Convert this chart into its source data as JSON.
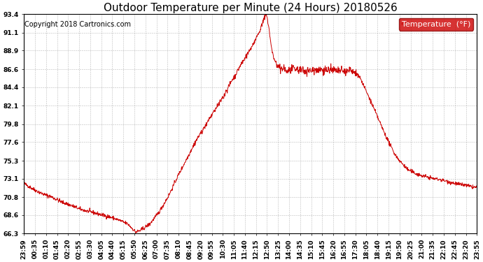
{
  "title": "Outdoor Temperature per Minute (24 Hours) 20180526",
  "copyright_text": "Copyright 2018 Cartronics.com",
  "legend_label": "Temperature  (°F)",
  "line_color": "#cc0000",
  "legend_bg": "#cc0000",
  "legend_text_color": "#ffffff",
  "background_color": "#ffffff",
  "grid_color": "#aaaaaa",
  "yticks": [
    66.3,
    68.6,
    70.8,
    73.1,
    75.3,
    77.6,
    79.8,
    82.1,
    84.4,
    86.6,
    88.9,
    91.1,
    93.4
  ],
  "ymin": 66.3,
  "ymax": 93.4,
  "xtick_labels": [
    "23:59",
    "00:35",
    "01:10",
    "01:45",
    "02:20",
    "02:55",
    "03:30",
    "04:05",
    "04:40",
    "05:15",
    "05:50",
    "06:25",
    "07:00",
    "07:35",
    "08:10",
    "08:45",
    "09:20",
    "09:55",
    "10:30",
    "11:05",
    "11:40",
    "12:15",
    "12:50",
    "13:25",
    "14:00",
    "14:35",
    "15:10",
    "15:45",
    "16:20",
    "16:55",
    "17:30",
    "18:05",
    "18:40",
    "19:15",
    "19:50",
    "20:25",
    "21:00",
    "21:35",
    "22:10",
    "22:45",
    "23:20",
    "23:55"
  ],
  "title_fontsize": 11,
  "axis_fontsize": 6.5,
  "copyright_fontsize": 7,
  "legend_fontsize": 8,
  "keypoints": [
    [
      0,
      72.5
    ],
    [
      30,
      71.8
    ],
    [
      60,
      71.2
    ],
    [
      90,
      70.8
    ],
    [
      120,
      70.2
    ],
    [
      150,
      69.8
    ],
    [
      180,
      69.3
    ],
    [
      210,
      69.0
    ],
    [
      240,
      68.7
    ],
    [
      270,
      68.4
    ],
    [
      300,
      68.0
    ],
    [
      330,
      67.5
    ],
    [
      355,
      66.5
    ],
    [
      370,
      66.7
    ],
    [
      400,
      67.5
    ],
    [
      430,
      69.0
    ],
    [
      460,
      71.0
    ],
    [
      490,
      73.5
    ],
    [
      510,
      75.0
    ],
    [
      530,
      76.5
    ],
    [
      550,
      78.0
    ],
    [
      570,
      79.2
    ],
    [
      590,
      80.5
    ],
    [
      610,
      81.8
    ],
    [
      630,
      83.0
    ],
    [
      650,
      84.5
    ],
    [
      670,
      85.8
    ],
    [
      690,
      87.2
    ],
    [
      710,
      88.5
    ],
    [
      730,
      89.8
    ],
    [
      750,
      91.5
    ],
    [
      760,
      92.5
    ],
    [
      770,
      93.4
    ],
    [
      778,
      91.8
    ],
    [
      785,
      89.5
    ],
    [
      795,
      87.8
    ],
    [
      805,
      87.0
    ],
    [
      815,
      86.5
    ],
    [
      825,
      86.8
    ],
    [
      835,
      86.3
    ],
    [
      845,
      86.5
    ],
    [
      860,
      86.6
    ],
    [
      880,
      86.5
    ],
    [
      900,
      86.4
    ],
    [
      920,
      86.5
    ],
    [
      940,
      86.6
    ],
    [
      960,
      86.5
    ],
    [
      980,
      86.5
    ],
    [
      1000,
      86.4
    ],
    [
      1020,
      86.3
    ],
    [
      1035,
      86.5
    ],
    [
      1050,
      86.2
    ],
    [
      1065,
      85.8
    ],
    [
      1080,
      84.5
    ],
    [
      1100,
      82.8
    ],
    [
      1120,
      81.0
    ],
    [
      1140,
      79.2
    ],
    [
      1160,
      77.5
    ],
    [
      1180,
      76.0
    ],
    [
      1200,
      75.0
    ],
    [
      1220,
      74.2
    ],
    [
      1240,
      73.8
    ],
    [
      1260,
      73.5
    ],
    [
      1280,
      73.3
    ],
    [
      1300,
      73.1
    ],
    [
      1320,
      73.0
    ],
    [
      1340,
      72.8
    ],
    [
      1360,
      72.6
    ],
    [
      1380,
      72.4
    ],
    [
      1400,
      72.3
    ],
    [
      1420,
      72.1
    ],
    [
      1439,
      72.0
    ]
  ]
}
